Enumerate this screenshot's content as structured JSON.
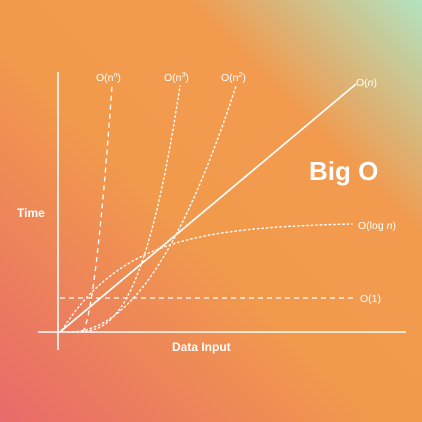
{
  "colors": {
    "gradient": [
      "#e86a6a",
      "#f19a4c",
      "#f29a4e",
      "#b2e3c0"
    ],
    "line": "#ffffff"
  },
  "chart_data": {
    "type": "line",
    "title": "Big O",
    "xlabel": "Data Input",
    "ylabel": "Time",
    "grid": false,
    "legend": "inline labels at curve ends",
    "series": [
      {
        "name": "O(n^n)",
        "label_main": "O(n",
        "label_sup": "n",
        "label_close": ")",
        "style": "dashed",
        "fn": "exp_fast"
      },
      {
        "name": "O(n^3)",
        "label_main": "O(n",
        "label_sup": "3",
        "label_close": ")",
        "style": "dotted",
        "fn": "cubic"
      },
      {
        "name": "O(n^2)",
        "label_main": "O(n",
        "label_sup": "2",
        "label_close": ")",
        "style": "dotted",
        "fn": "quadratic"
      },
      {
        "name": "O(n)",
        "label_main": "O(",
        "label_it": "n",
        "label_close": ")",
        "style": "solid",
        "fn": "linear"
      },
      {
        "name": "O(log n)",
        "label_main": "O(log ",
        "label_it": "n",
        "label_close": ")",
        "style": "dotted",
        "fn": "log"
      },
      {
        "name": "O(1)",
        "label_main": "O(1)",
        "style": "dashed",
        "fn": "constant"
      }
    ]
  }
}
